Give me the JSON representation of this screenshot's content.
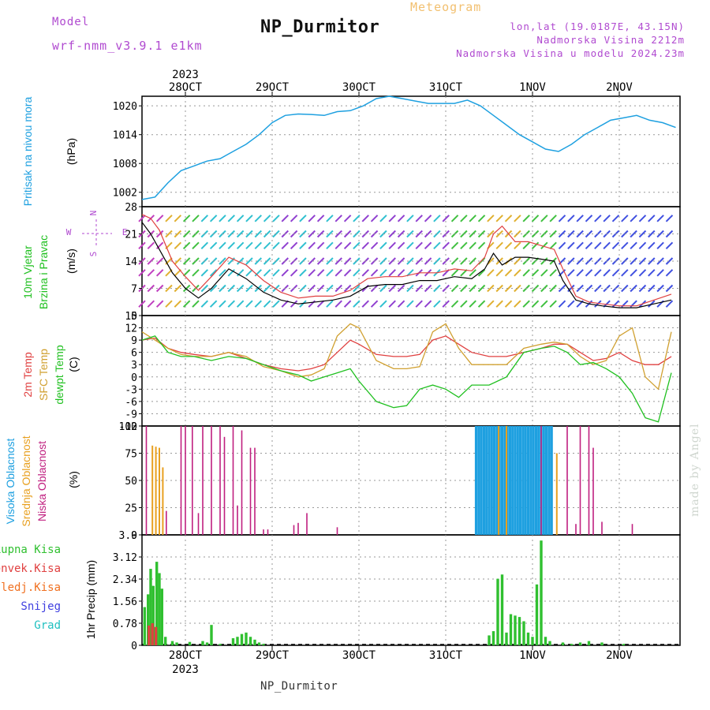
{
  "header": {
    "model_label": "Model",
    "model_run": "wrf-nmm_v3.9.1 e1km",
    "title": "NP_Durmitor",
    "meteogram": "Meteogram",
    "lonlat": "lon,lat (19.0187E, 43.15N)",
    "elevation": "Nadmorska Visina 2212m",
    "model_elevation": "Nadmorska Visina u modelu 2024.23m",
    "footer": "NP_Durmitor",
    "watermark": "made by Angel"
  },
  "colors": {
    "pressure": "#1ea0e0",
    "temp2m": "#e04040",
    "sfc": "#d0a030",
    "dewpt": "#20c020",
    "visoka": "#1ea0e0",
    "srednja": "#e8a020",
    "niska": "#c02080",
    "ukupna": "#30c030",
    "konvek": "#e04040",
    "zaledj": "#f07020",
    "snijeg": "#4040e0",
    "grad": "#20c0c0",
    "purple": "#b04ad0",
    "black": "#000000"
  },
  "chart_data": [
    {
      "type": "line",
      "panel": "pressure",
      "ylabel": [
        "Pritisak na nivou mora",
        "(hPa)"
      ],
      "yticks": [
        1002,
        1008,
        1014,
        1020
      ],
      "ylim": [
        999,
        1022
      ],
      "grid": true,
      "series": [
        {
          "color_key": "pressure",
          "x": [
            0,
            0.15,
            0.3,
            0.45,
            0.6,
            0.75,
            0.9,
            1.0,
            1.2,
            1.35,
            1.5,
            1.65,
            1.8,
            1.95,
            2.1,
            2.25,
            2.4,
            2.55,
            2.7,
            2.85,
            3.0,
            3.15,
            3.3,
            3.45,
            3.6,
            3.75,
            3.9,
            4.05,
            4.2,
            4.35,
            4.5,
            4.65,
            4.8,
            4.95,
            5.1,
            5.25,
            5.4,
            5.55,
            5.7,
            5.85,
            6.0,
            6.15
          ],
          "y": [
            1000.5,
            1001,
            1004,
            1006.5,
            1007.5,
            1008.5,
            1009,
            1010,
            1012,
            1014,
            1016.5,
            1018,
            1018.3,
            1018.2,
            1018,
            1018.8,
            1019,
            1020,
            1021.5,
            1022,
            1021.5,
            1021,
            1020.5,
            1020.5,
            1020.5,
            1021.2,
            1020,
            1018,
            1016,
            1014,
            1012.5,
            1011,
            1010.5,
            1012,
            1014,
            1015.5,
            1017,
            1017.5,
            1018,
            1017,
            1016.5,
            1015.5
          ]
        }
      ]
    },
    {
      "type": "line",
      "panel": "wind",
      "ylabel": [
        "10m Vjetar",
        "Brzina i Pravac",
        "(m/s)"
      ],
      "yticks": [
        0,
        7,
        14,
        21,
        28
      ],
      "ylim": [
        0,
        28
      ],
      "direction_labels": [
        "W",
        "<",
        "-",
        "|",
        "-",
        ">",
        "N",
        "S",
        "E"
      ],
      "series": [
        {
          "name": "speed",
          "color_key": "black",
          "x": [
            0,
            0.1,
            0.2,
            0.35,
            0.5,
            0.65,
            0.8,
            1.0,
            1.2,
            1.4,
            1.6,
            1.8,
            2.0,
            2.2,
            2.4,
            2.6,
            2.8,
            3.0,
            3.2,
            3.4,
            3.6,
            3.8,
            3.95,
            4.05,
            4.15,
            4.3,
            4.45,
            4.6,
            4.75,
            4.85,
            5.0,
            5.15,
            5.3,
            5.5,
            5.7,
            5.9,
            6.1
          ],
          "y": [
            24,
            21,
            17,
            11,
            7,
            4.5,
            7,
            12,
            9.5,
            6,
            4,
            3,
            3.5,
            4,
            5,
            7.5,
            8,
            8,
            9,
            9,
            10,
            9.5,
            12,
            16,
            13,
            15,
            15,
            14.5,
            14,
            9,
            4,
            3,
            2.5,
            2,
            2,
            3,
            4
          ]
        },
        {
          "name": "gust",
          "color_key": "temp2m",
          "x": [
            0,
            0.1,
            0.2,
            0.35,
            0.5,
            0.65,
            0.8,
            1.0,
            1.2,
            1.4,
            1.6,
            1.8,
            2.0,
            2.2,
            2.4,
            2.6,
            2.8,
            3.0,
            3.2,
            3.4,
            3.6,
            3.8,
            3.95,
            4.05,
            4.15,
            4.3,
            4.45,
            4.6,
            4.75,
            4.85,
            5.0,
            5.15,
            5.3,
            5.5,
            5.7,
            5.9,
            6.1
          ],
          "y": [
            26,
            25,
            22,
            14,
            10,
            6.5,
            10,
            15,
            13,
            9,
            6,
            4.5,
            5,
            5,
            6.5,
            9.5,
            10,
            10,
            11,
            11,
            12,
            11.5,
            15,
            21,
            23,
            19,
            19,
            18,
            17,
            12,
            5,
            3.5,
            3,
            2.5,
            2.5,
            4,
            5.5
          ]
        }
      ]
    },
    {
      "type": "line",
      "panel": "temperature",
      "ylabel": [
        "2m Temp",
        "SFC Temp",
        "dewpt Temp",
        "(C)"
      ],
      "yticks": [
        -12,
        -9,
        -6,
        -3,
        0,
        3,
        6,
        9,
        12,
        15
      ],
      "ylim": [
        -12,
        15
      ],
      "grid": true,
      "series": [
        {
          "name": "2m Temp",
          "color_key": "temp2m",
          "x": [
            0,
            0.15,
            0.3,
            0.45,
            0.6,
            0.8,
            1.0,
            1.2,
            1.4,
            1.6,
            1.8,
            1.95,
            2.1,
            2.25,
            2.4,
            2.5,
            2.7,
            2.9,
            3.05,
            3.2,
            3.35,
            3.5,
            3.65,
            3.8,
            4.0,
            4.2,
            4.4,
            4.6,
            4.75,
            4.9,
            5.05,
            5.2,
            5.35,
            5.5,
            5.65,
            5.8,
            5.95,
            6.1
          ],
          "y": [
            9,
            9.5,
            7,
            6,
            5.5,
            5,
            6,
            4.5,
            3,
            2,
            1.5,
            2,
            3,
            6,
            9,
            8,
            5.5,
            5,
            5,
            5.5,
            9,
            10,
            8,
            6,
            5,
            5,
            6,
            7,
            8,
            8,
            6,
            4,
            4.5,
            6,
            4,
            3,
            3,
            5
          ]
        },
        {
          "name": "SFC Temp",
          "color_key": "sfc",
          "x": [
            0,
            0.15,
            0.3,
            0.45,
            0.6,
            0.8,
            1.0,
            1.2,
            1.4,
            1.6,
            1.8,
            1.95,
            2.1,
            2.25,
            2.4,
            2.5,
            2.7,
            2.9,
            3.05,
            3.2,
            3.35,
            3.5,
            3.65,
            3.8,
            4.0,
            4.2,
            4.4,
            4.6,
            4.75,
            4.9,
            5.05,
            5.2,
            5.35,
            5.5,
            5.65,
            5.8,
            5.95,
            6.1
          ],
          "y": [
            11,
            9,
            7,
            5.5,
            5,
            5,
            6,
            5,
            2.5,
            1.5,
            0,
            0.5,
            2,
            10,
            13,
            12,
            4,
            2,
            2,
            2.5,
            11,
            13,
            7,
            3,
            3,
            3,
            7,
            8,
            8.5,
            8,
            5,
            3,
            4,
            10,
            12,
            0,
            -3,
            11
          ]
        },
        {
          "name": "dewpt Temp",
          "color_key": "dewpt",
          "x": [
            0,
            0.15,
            0.3,
            0.45,
            0.6,
            0.8,
            1.0,
            1.2,
            1.4,
            1.6,
            1.8,
            1.95,
            2.1,
            2.25,
            2.4,
            2.5,
            2.7,
            2.9,
            3.05,
            3.2,
            3.35,
            3.5,
            3.65,
            3.8,
            4.0,
            4.2,
            4.4,
            4.6,
            4.75,
            4.9,
            5.05,
            5.2,
            5.35,
            5.5,
            5.65,
            5.8,
            5.95,
            6.1
          ],
          "y": [
            9,
            10,
            6,
            5,
            5,
            4,
            5,
            4.5,
            3,
            1.5,
            0.5,
            -1,
            0,
            1,
            2,
            -1,
            -6,
            -7.5,
            -7,
            -3,
            -2,
            -3,
            -5,
            -2,
            -2,
            0,
            6,
            7,
            7.5,
            6,
            3,
            3.5,
            2,
            0,
            -4,
            -10,
            -11,
            1
          ]
        }
      ]
    },
    {
      "type": "bar",
      "panel": "clouds",
      "ylabel": [
        "Visoka Oblacnost",
        "Srednja Oblacnost",
        "Niska Oblacnost",
        "(%)"
      ],
      "yticks": [
        0,
        25,
        50,
        75,
        100
      ],
      "ylim": [
        0,
        100
      ],
      "grid": true,
      "visoka": {
        "x": [
          3.85,
          3.88,
          3.91,
          3.94,
          3.97,
          4.0,
          4.03,
          4.06,
          4.09,
          4.12,
          4.15,
          4.18,
          4.21,
          4.24,
          4.27,
          4.3,
          4.33,
          4.36,
          4.39,
          4.42,
          4.45,
          4.48,
          4.51,
          4.54,
          4.57,
          4.6,
          4.63,
          4.66,
          4.69,
          4.72
        ],
        "values": [
          100,
          100,
          100,
          100,
          100,
          100,
          100,
          100,
          100,
          100,
          100,
          100,
          100,
          100,
          100,
          100,
          100,
          100,
          100,
          100,
          100,
          100,
          100,
          100,
          100,
          100,
          100,
          100,
          100,
          100
        ]
      },
      "srednja": {
        "x": [
          0.12,
          0.16,
          0.2,
          0.24,
          4.11,
          4.2,
          4.78
        ],
        "values": [
          82,
          81,
          80,
          62,
          100,
          100,
          75
        ]
      },
      "niska": {
        "x": [
          0.05,
          0.28,
          0.45,
          0.5,
          0.58,
          0.65,
          0.7,
          0.8,
          0.9,
          0.95,
          1.05,
          1.1,
          1.15,
          1.25,
          1.3,
          1.4,
          1.45,
          1.75,
          1.8,
          1.9,
          2.25,
          4.6,
          4.9,
          5.0,
          5.05,
          5.15,
          5.2,
          5.3,
          5.65
        ],
        "values": [
          100,
          22,
          100,
          100,
          100,
          20,
          100,
          100,
          100,
          90,
          100,
          27,
          96,
          80,
          80,
          5,
          5,
          9,
          11,
          20,
          7,
          100,
          100,
          10,
          100,
          100,
          80,
          12,
          10
        ]
      }
    },
    {
      "type": "bar",
      "panel": "precip",
      "ylabel": [
        "1hr Precip (mm)"
      ],
      "legend": [
        "Ukupna Kisa",
        "Konvek.Kisa",
        "Zaledj.Kisa",
        "Snijeg",
        "Grad"
      ],
      "yticks": [
        0,
        0.78,
        1.56,
        2.34,
        3.12,
        3.9
      ],
      "ylim": [
        0,
        3.9
      ],
      "grid": true,
      "ukupna": {
        "x": [
          0.03,
          0.07,
          0.1,
          0.13,
          0.17,
          0.2,
          0.23,
          0.27,
          0.35,
          0.4,
          0.55,
          0.7,
          0.75,
          0.8,
          0.9,
          1.05,
          1.1,
          1.15,
          1.2,
          1.25,
          1.3,
          1.35,
          1.4,
          4.0,
          4.05,
          4.1,
          4.15,
          4.2,
          4.25,
          4.3,
          4.35,
          4.4,
          4.45,
          4.5,
          4.55,
          4.6,
          4.65,
          4.7,
          4.85,
          4.95,
          5.05,
          5.15,
          5.3,
          5.55
        ],
        "values": [
          1.35,
          1.8,
          2.7,
          2.1,
          2.95,
          2.55,
          2.0,
          0.3,
          0.15,
          0.1,
          0.12,
          0.15,
          0.1,
          0.72,
          0.05,
          0.25,
          0.3,
          0.4,
          0.45,
          0.3,
          0.2,
          0.1,
          0.05,
          0.35,
          0.5,
          2.35,
          2.5,
          0.45,
          1.1,
          1.05,
          1.0,
          0.85,
          0.45,
          0.3,
          2.15,
          3.7,
          0.3,
          0.15,
          0.1,
          0.05,
          0.1,
          0.15,
          0.1,
          0.05
        ]
      },
      "konvek": {
        "x": [
          0.08,
          0.12,
          0.16
        ],
        "values": [
          0.7,
          0.78,
          0.65
        ]
      }
    }
  ],
  "time_axis": {
    "year": "2023",
    "labels": [
      "28OCT",
      "29OCT",
      "30OCT",
      "31OCT",
      "1NOV",
      "2NOV"
    ]
  }
}
